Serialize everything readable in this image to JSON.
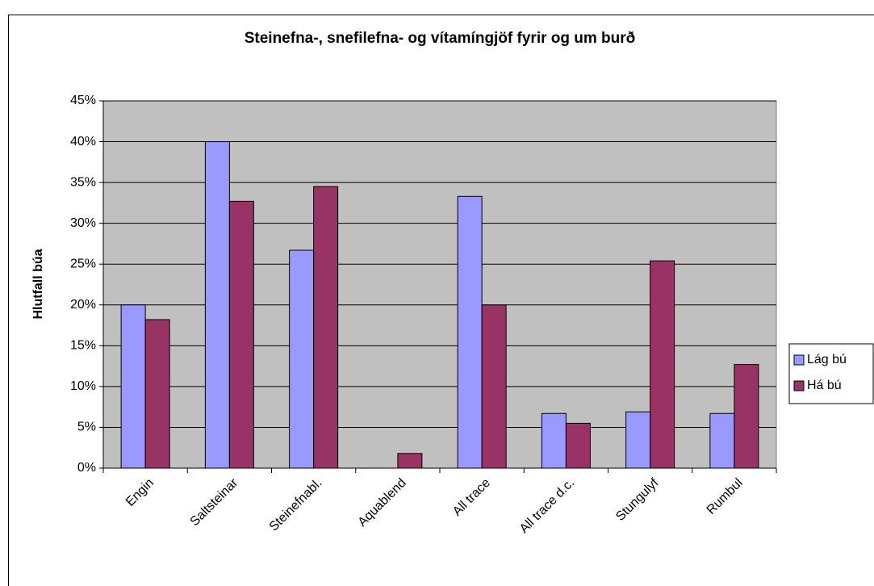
{
  "chart_data": {
    "type": "bar",
    "title": "Steinefna-, snefilefna- og vítamíngjöf fyrir og um burð",
    "y_label": "Hlutfall búa",
    "categories": [
      "Engin",
      "Saltsteinar",
      "Steinefnabl.",
      "Aquablend",
      "All trace",
      "All trace d.c.",
      "Stungulyf",
      "Rumbul"
    ],
    "series": [
      {
        "name": "Lág bú",
        "color": "#9999ff",
        "values": [
          20,
          40,
          26.7,
          0,
          33.3,
          6.7,
          6.9,
          6.7
        ]
      },
      {
        "name": "Há bú",
        "color": "#993366",
        "values": [
          18.2,
          32.7,
          34.5,
          1.8,
          20,
          5.5,
          25.4,
          12.7
        ]
      }
    ],
    "ylim": [
      0,
      45
    ],
    "yticks": [
      {
        "value": 0,
        "label": "0%"
      },
      {
        "value": 5,
        "label": "5%"
      },
      {
        "value": 10,
        "label": "10%"
      },
      {
        "value": 15,
        "label": "15%"
      },
      {
        "value": 20,
        "label": "20%"
      },
      {
        "value": 25,
        "label": "25%"
      },
      {
        "value": 30,
        "label": "30%"
      },
      {
        "value": 35,
        "label": "35%"
      },
      {
        "value": 40,
        "label": "40%"
      },
      {
        "value": 45,
        "label": "45%"
      }
    ],
    "grid": true,
    "legend": "right"
  }
}
